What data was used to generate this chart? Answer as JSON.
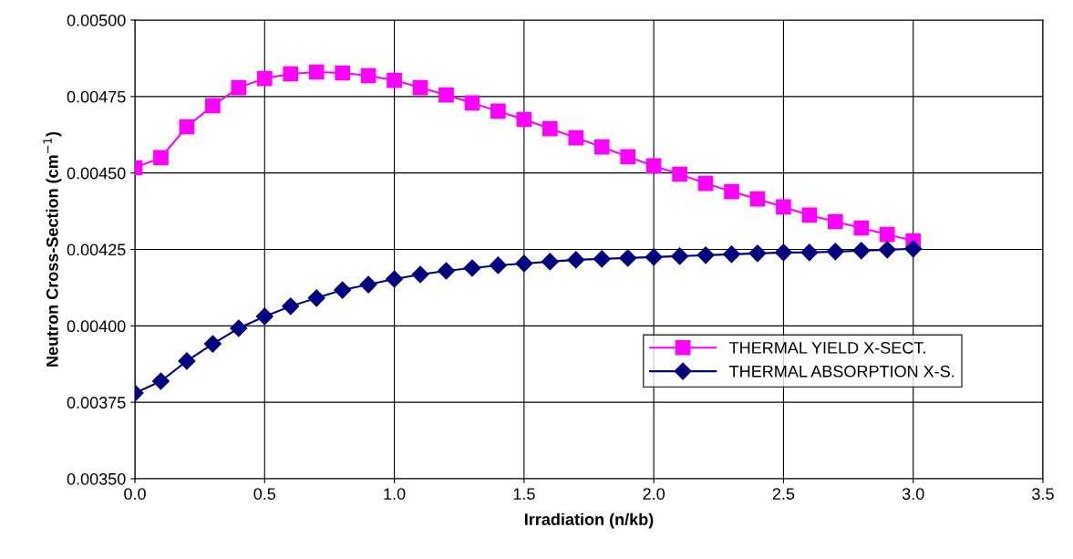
{
  "chart_data": {
    "type": "line",
    "xlabel": "Irradiation (n/kb)",
    "ylabel": "Neutron Cross-Section (cm$^{−1}$)",
    "xlim": [
      0,
      3.5
    ],
    "ylim": [
      0.0035,
      0.005
    ],
    "xticks": [
      {
        "value": 0,
        "label": "0.0"
      },
      {
        "value": 0.5,
        "label": "0.5"
      },
      {
        "value": 1,
        "label": "1.0"
      },
      {
        "value": 1.5,
        "label": "1.5"
      },
      {
        "value": 2,
        "label": "2.0"
      },
      {
        "value": 2.5,
        "label": "2.5"
      },
      {
        "value": 3,
        "label": "3.0"
      },
      {
        "value": 3.5,
        "label": "3.5"
      }
    ],
    "yticks": [
      {
        "value": 0.0035,
        "label": "0.00350"
      },
      {
        "value": 0.00375,
        "label": "0.00375"
      },
      {
        "value": 0.004,
        "label": "0.00400"
      },
      {
        "value": 0.00425,
        "label": "0.00425"
      },
      {
        "value": 0.0045,
        "label": "0.00450"
      },
      {
        "value": 0.00475,
        "label": "0.00475"
      },
      {
        "value": 0.005,
        "label": "0.00500"
      }
    ],
    "grid": true,
    "legend": "bottom right",
    "line_style": "solid",
    "x": [
      0,
      0.1,
      0.2,
      0.3,
      0.4,
      0.5,
      0.6,
      0.7,
      0.8,
      0.9,
      1.0,
      1.1,
      1.2,
      1.3,
      1.4,
      1.5,
      1.6,
      1.7,
      1.8,
      1.9,
      2.0,
      2.1,
      2.2,
      2.3,
      2.4,
      2.5,
      2.6,
      2.7,
      2.8,
      2.9,
      3.0
    ],
    "series": [
      {
        "name": "THERMAL YIELD X-SECT.",
        "color": "#ff00ff",
        "marker": "square",
        "values": [
          0.004517,
          0.00455,
          0.004651,
          0.00472,
          0.004779,
          0.004809,
          0.004824,
          0.00483,
          0.004827,
          0.004818,
          0.004803,
          0.004779,
          0.004755,
          0.004729,
          0.004702,
          0.004675,
          0.004645,
          0.004615,
          0.004585,
          0.004553,
          0.004523,
          0.004496,
          0.004466,
          0.004439,
          0.004415,
          0.004389,
          0.004362,
          0.004341,
          0.00432,
          0.004299,
          0.004278
        ]
      },
      {
        "name": "THERMAL ABSORPTION X-S.",
        "color": "#000080",
        "marker": "diamond",
        "values": [
          0.00378,
          0.003819,
          0.003885,
          0.003941,
          0.003992,
          0.004031,
          0.004064,
          0.004091,
          0.004117,
          0.004135,
          0.004153,
          0.004168,
          0.00418,
          0.004189,
          0.004198,
          0.004204,
          0.00421,
          0.004216,
          0.004219,
          0.004222,
          0.004225,
          0.004228,
          0.004231,
          0.004234,
          0.004237,
          0.00424,
          0.00424,
          0.004243,
          0.004246,
          0.004249,
          0.004252
        ]
      }
    ]
  }
}
